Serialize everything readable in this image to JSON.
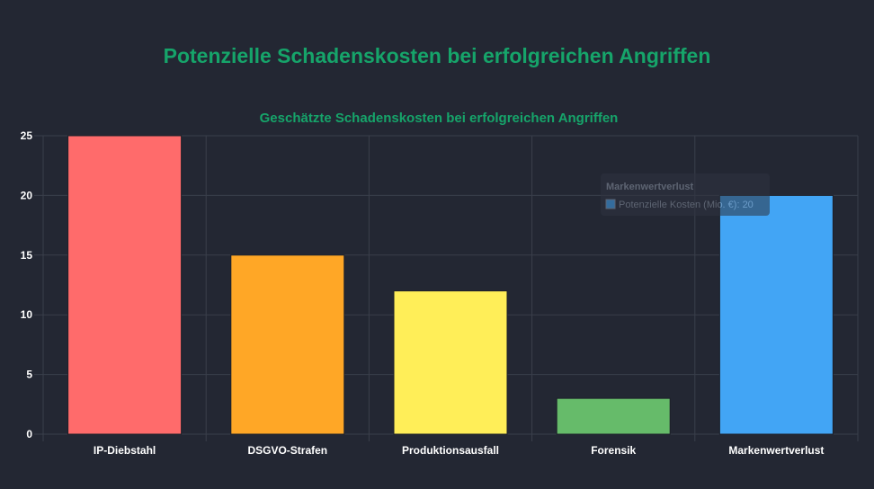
{
  "page": {
    "title": "Potenzielle Schadenskosten bei erfolgreichen Angriffen"
  },
  "chart_data": {
    "type": "bar",
    "title": "Geschätzte Schadenskosten bei erfolgreichen Angriffen",
    "xlabel": "",
    "ylabel": "",
    "categories": [
      "IP-Diebstahl",
      "DSGVO-Strafen",
      "Produktionsausfall",
      "Forensik",
      "Markenwertverlust"
    ],
    "series": [
      {
        "name": "Potenzielle Kosten (Mio. €)",
        "values": [
          25,
          15,
          12,
          3,
          20
        ],
        "colors": [
          "#ff6b6b",
          "#ffa726",
          "#ffee58",
          "#66bb6a",
          "#42a5f5"
        ]
      }
    ],
    "ylim": [
      0,
      25
    ],
    "yticks": [
      0,
      5,
      10,
      15,
      20,
      25
    ],
    "grid": true,
    "legend": "none",
    "tooltip": {
      "title": "Markenwertverlust",
      "label": "Potenzielle Kosten (Mio. €): 20"
    }
  },
  "colors": {
    "background": "#232733",
    "accent": "#16a46a",
    "grid": "#3a3f4b",
    "tick_text": "#ffffff"
  }
}
